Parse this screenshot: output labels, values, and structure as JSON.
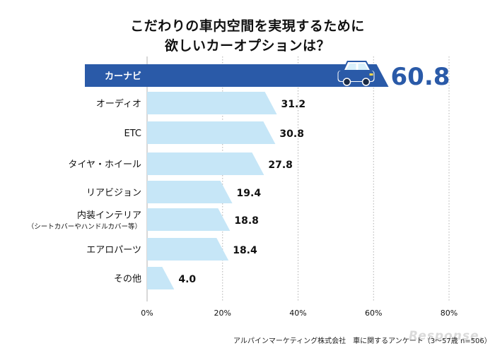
{
  "title_line_1": "こだわりの車内空間を実現するために",
  "title_line_2": "欲しいカーオプションは？",
  "source": "アルパインマーケティング株式会社　車に関するアンケート（3～57歳 n=506）",
  "watermark": "Response.",
  "colors": {
    "highlight": "#2a5aa8",
    "bar": "#c6e6f7",
    "text": "#111111",
    "grid": "#b0b0b0",
    "car": "#2a5aa8"
  },
  "chart_data": {
    "type": "bar",
    "orientation": "horizontal",
    "title": "こだわりの車内空間を実現するために欲しいカーオプションは？",
    "categories": [
      [
        "カーナビ"
      ],
      [
        "オーディオ"
      ],
      [
        "ETC"
      ],
      [
        "タイヤ・ホイール"
      ],
      [
        "リアビジョン"
      ],
      [
        "内装インテリア",
        "（シートカバーやハンドルカバー等）"
      ],
      [
        "エアロパーツ"
      ],
      [
        "その他"
      ]
    ],
    "values": [
      60.8,
      31.2,
      30.8,
      27.8,
      19.4,
      18.8,
      18.4,
      4.0
    ],
    "value_labels": [
      "60.8",
      "31.2",
      "30.8",
      "27.8",
      "19.4",
      "18.8",
      "18.4",
      "4.0"
    ],
    "highlight_index": 0,
    "xlim": [
      0,
      80
    ],
    "x_ticks": [
      0,
      20,
      40,
      60,
      80
    ],
    "x_tick_labels": [
      "0%",
      "20%",
      "40%",
      "60%",
      "80%"
    ],
    "grid": true,
    "legend": "none",
    "icon": "car-icon"
  }
}
